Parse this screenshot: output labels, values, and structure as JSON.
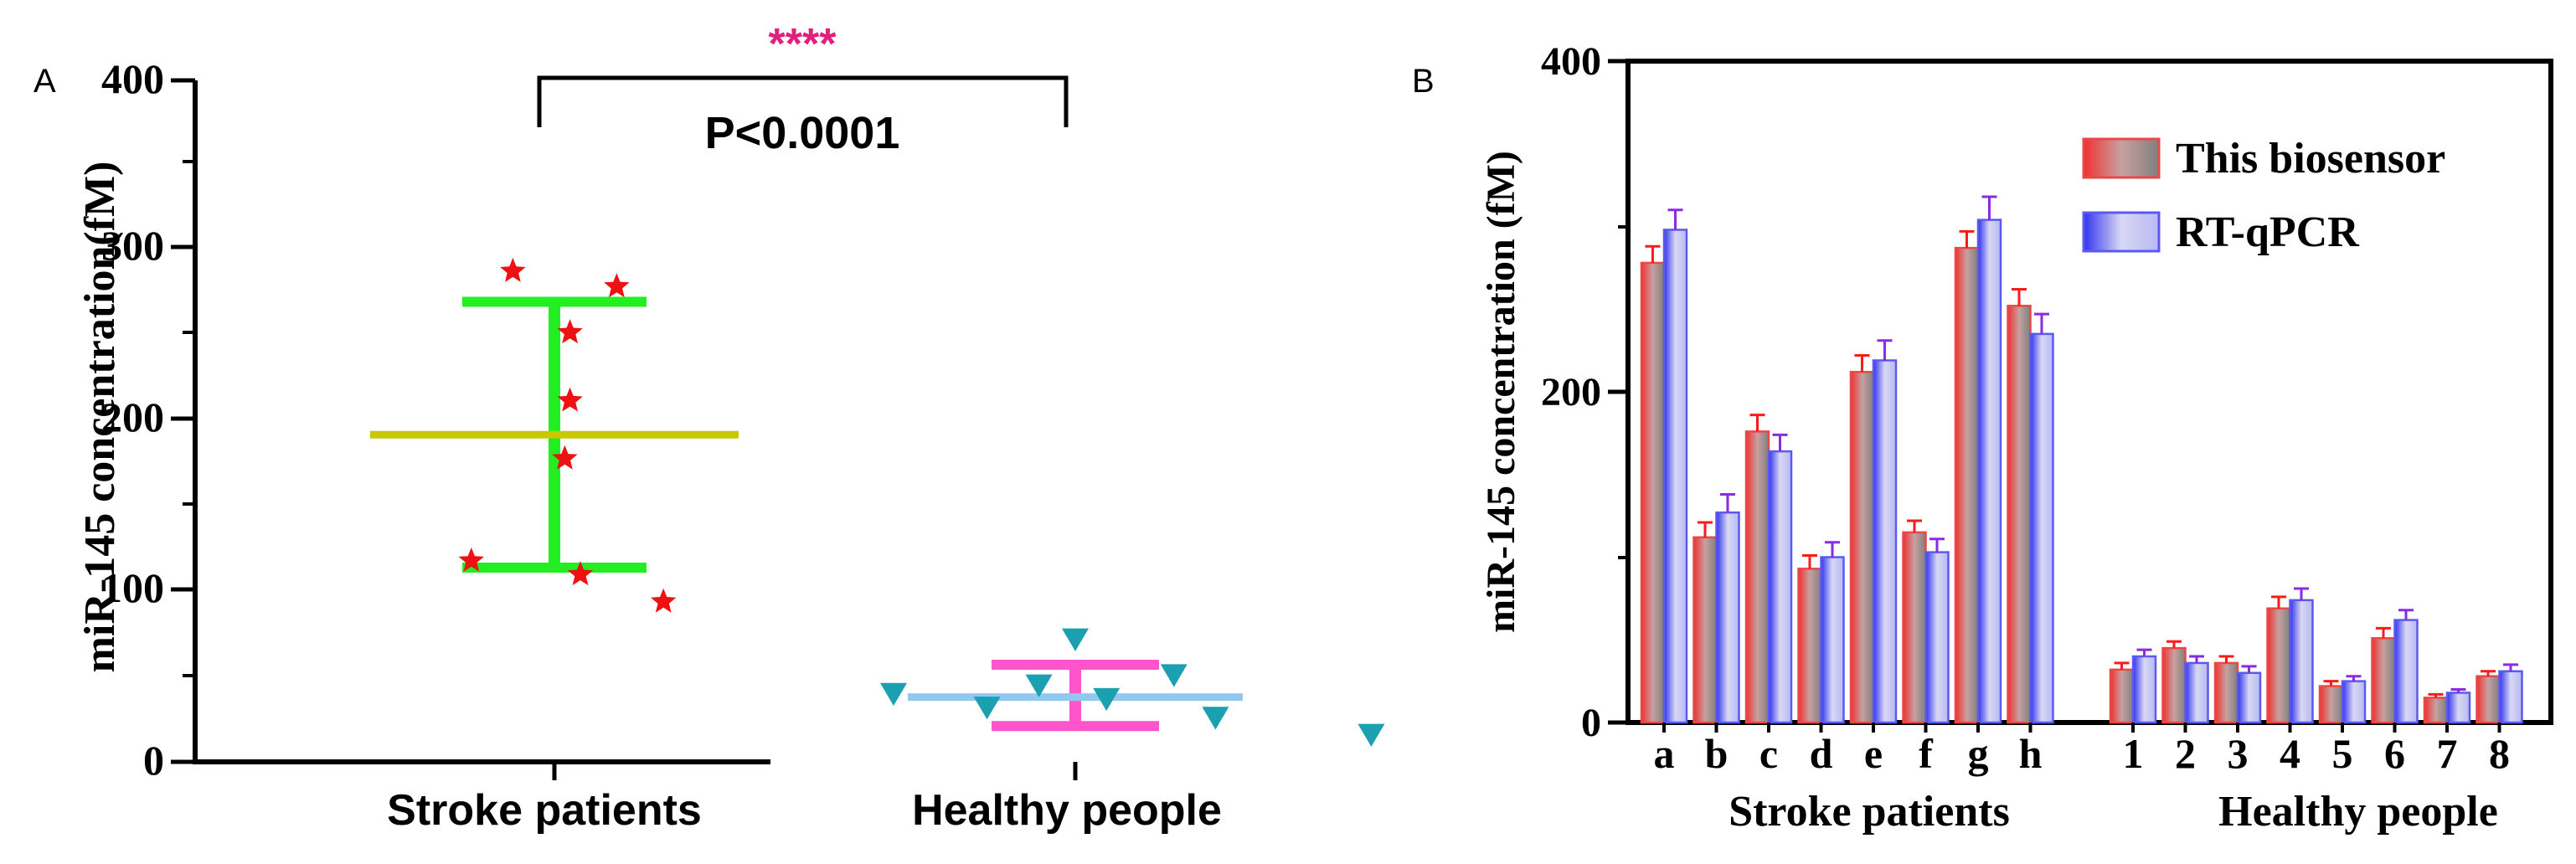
{
  "chart_data": [
    {
      "panel": "A",
      "type": "scatter",
      "ylabel": "miR-145 concentration(fM)",
      "ylim": [
        0,
        400
      ],
      "yticks": [
        "0",
        "100",
        "200",
        "300",
        "400"
      ],
      "categories": [
        "Stroke patients",
        "Healthy people"
      ],
      "significance": {
        "stars": "****",
        "pvalue": "P<0.0001"
      },
      "groups": [
        {
          "name": "Stroke patients",
          "marker": "star",
          "color": "#ee1111",
          "mean": 192,
          "lower": 114,
          "upper": 270,
          "mean_color": "#c8c800",
          "error_color": "#22ee22",
          "points": [
            [
              -0.08,
              288
            ],
            [
              0.12,
              279
            ],
            [
              0.03,
              252
            ],
            [
              0.03,
              212
            ],
            [
              0.02,
              178
            ],
            [
              -0.16,
              118
            ],
            [
              0.05,
              110
            ],
            [
              0.21,
              94
            ]
          ]
        },
        {
          "name": "Healthy people",
          "marker": "triangle-down",
          "color": "#1aa0b0",
          "mean": 38,
          "lower": 21,
          "upper": 57,
          "mean_color": "#90c8f0",
          "error_color": "#ff55cc",
          "points": [
            [
              -0.35,
              40
            ],
            [
              0.0,
              72
            ],
            [
              -0.17,
              32
            ],
            [
              -0.07,
              45
            ],
            [
              0.06,
              37
            ],
            [
              0.19,
              51
            ],
            [
              0.27,
              26
            ],
            [
              0.57,
              16
            ]
          ]
        }
      ]
    },
    {
      "panel": "B",
      "type": "bar",
      "ylabel": "miR-145 concentration (fM)",
      "ylim": [
        0,
        400
      ],
      "yticks": [
        "0",
        "200",
        "400"
      ],
      "groups": [
        {
          "label": "Stroke patients",
          "categories": [
            "a",
            "b",
            "c",
            "d",
            "e",
            "f",
            "g",
            "h"
          ]
        },
        {
          "label": "Healthy people",
          "categories": [
            "1",
            "2",
            "3",
            "4",
            "5",
            "6",
            "7",
            "8"
          ]
        }
      ],
      "series": [
        {
          "name": "This biosensor",
          "color": "#e84848",
          "error_color": "#ff1a1a",
          "values": [
            278,
            112,
            176,
            93,
            212,
            115,
            287,
            252,
            32,
            45,
            36,
            69,
            22,
            51,
            15,
            28
          ],
          "errors": [
            10,
            9,
            10,
            8,
            10,
            7,
            10,
            10,
            4,
            4,
            4,
            7,
            3,
            6,
            2,
            3
          ]
        },
        {
          "name": "RT-qPCR",
          "color": "#5a5aee",
          "error_color": "#8a2be2",
          "values": [
            298,
            127,
            164,
            100,
            219,
            103,
            304,
            235,
            40,
            36,
            30,
            74,
            25,
            62,
            18,
            31
          ],
          "errors": [
            12,
            11,
            10,
            9,
            12,
            8,
            14,
            12,
            4,
            4,
            4,
            7,
            3,
            6,
            2,
            4
          ]
        }
      ]
    }
  ]
}
